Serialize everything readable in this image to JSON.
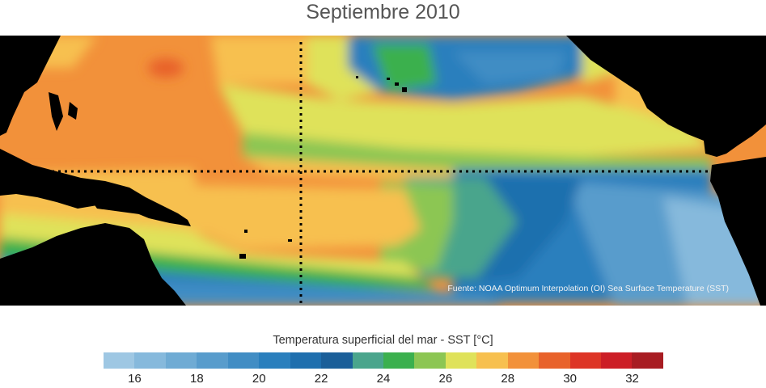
{
  "title": "Septiembre 2010",
  "source_note": "Fuente: NOAA Optimum Interpolation (OI) Sea Surface Temperature (SST)",
  "legend": {
    "title": "Temperatura superficial del mar - SST  [°C]",
    "min": 15,
    "max": 33,
    "ticks": [
      16,
      18,
      20,
      22,
      24,
      26,
      28,
      30,
      32
    ],
    "colors": [
      "#9ec7e3",
      "#86b9dc",
      "#6fabd4",
      "#589ccc",
      "#418dc4",
      "#2a7fbd",
      "#1f6fae",
      "#1b5f99",
      "#4aa58c",
      "#3bb04e",
      "#8cc653",
      "#dfe25a",
      "#f7c04f",
      "#f2913a",
      "#e8622b",
      "#dd3526",
      "#cc1e26",
      "#a81c22"
    ]
  },
  "colors": {
    "land": "#000000",
    "equator_line": "#000000"
  }
}
